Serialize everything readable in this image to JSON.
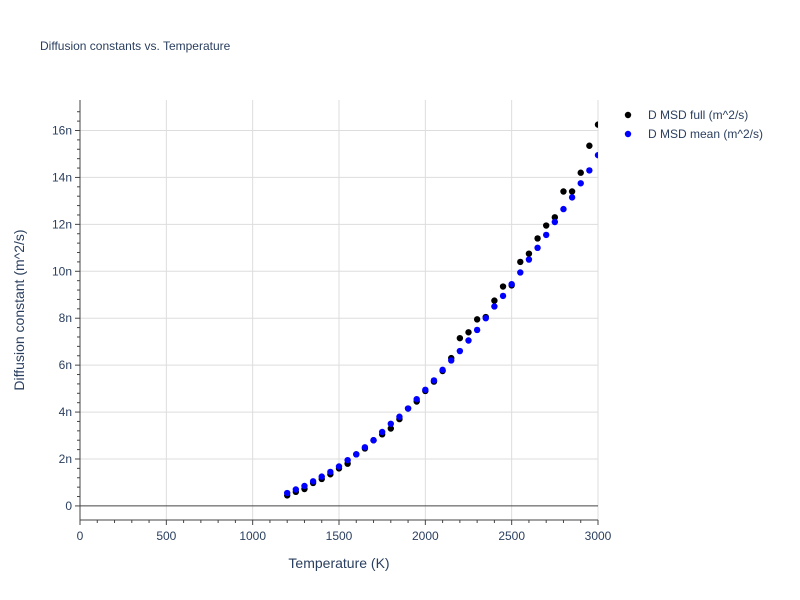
{
  "chart_data": {
    "type": "scatter",
    "title": "Diffusion constants vs. Temperature",
    "xlabel": "Temperature (K)",
    "ylabel": "Diffusion constant (m^2/s)",
    "xlim": [
      0,
      3000
    ],
    "ylim": [
      -0.6,
      17.3
    ],
    "grid": true,
    "legend_position": "top-right",
    "x_ticks": [
      {
        "value": 0,
        "label": "0"
      },
      {
        "value": 500,
        "label": "500"
      },
      {
        "value": 1000,
        "label": "1000"
      },
      {
        "value": 1500,
        "label": "1500"
      },
      {
        "value": 2000,
        "label": "2000"
      },
      {
        "value": 2500,
        "label": "2500"
      },
      {
        "value": 3000,
        "label": "3000"
      }
    ],
    "y_ticks": [
      {
        "value": 0,
        "label": "0"
      },
      {
        "value": 2,
        "label": "2n"
      },
      {
        "value": 4,
        "label": "4n"
      },
      {
        "value": 6,
        "label": "6n"
      },
      {
        "value": 8,
        "label": "8n"
      },
      {
        "value": 10,
        "label": "10n"
      },
      {
        "value": 12,
        "label": "12n"
      },
      {
        "value": 14,
        "label": "14n"
      },
      {
        "value": 16,
        "label": "16n"
      }
    ],
    "y_unit_note": "values in units of 1e-9 m^2/s",
    "series": [
      {
        "name": "D MSD full (m^2/s)",
        "color": "#000000",
        "x": [
          1200,
          1250,
          1300,
          1350,
          1400,
          1450,
          1500,
          1550,
          1600,
          1650,
          1700,
          1750,
          1800,
          1850,
          1900,
          1950,
          2000,
          2050,
          2100,
          2150,
          2200,
          2250,
          2300,
          2350,
          2400,
          2450,
          2500,
          2550,
          2600,
          2650,
          2700,
          2750,
          2800,
          2850,
          2900,
          2950,
          3000
        ],
        "y": [
          0.45,
          0.6,
          0.72,
          0.98,
          1.15,
          1.35,
          1.6,
          1.8,
          2.2,
          2.45,
          2.8,
          3.05,
          3.3,
          3.7,
          4.15,
          4.45,
          4.9,
          5.3,
          5.75,
          6.3,
          7.15,
          7.4,
          7.95,
          8.05,
          8.75,
          9.35,
          9.4,
          10.4,
          10.75,
          11.4,
          11.95,
          12.3,
          13.4,
          13.4,
          14.2,
          15.35,
          16.25
        ]
      },
      {
        "name": "D MSD mean (m^2/s)",
        "color": "#0000ff",
        "x": [
          1200,
          1250,
          1300,
          1350,
          1400,
          1450,
          1500,
          1550,
          1600,
          1650,
          1700,
          1750,
          1800,
          1850,
          1900,
          1950,
          2000,
          2050,
          2100,
          2150,
          2200,
          2250,
          2300,
          2350,
          2400,
          2450,
          2500,
          2550,
          2600,
          2650,
          2700,
          2750,
          2800,
          2850,
          2900,
          2950,
          3000
        ],
        "y": [
          0.55,
          0.7,
          0.85,
          1.05,
          1.25,
          1.45,
          1.68,
          1.95,
          2.2,
          2.5,
          2.8,
          3.15,
          3.5,
          3.8,
          4.15,
          4.55,
          4.95,
          5.35,
          5.8,
          6.2,
          6.6,
          7.05,
          7.5,
          8.0,
          8.5,
          8.95,
          9.45,
          9.95,
          10.5,
          11.0,
          11.55,
          12.1,
          12.65,
          13.15,
          13.75,
          14.3,
          14.95
        ]
      }
    ]
  }
}
